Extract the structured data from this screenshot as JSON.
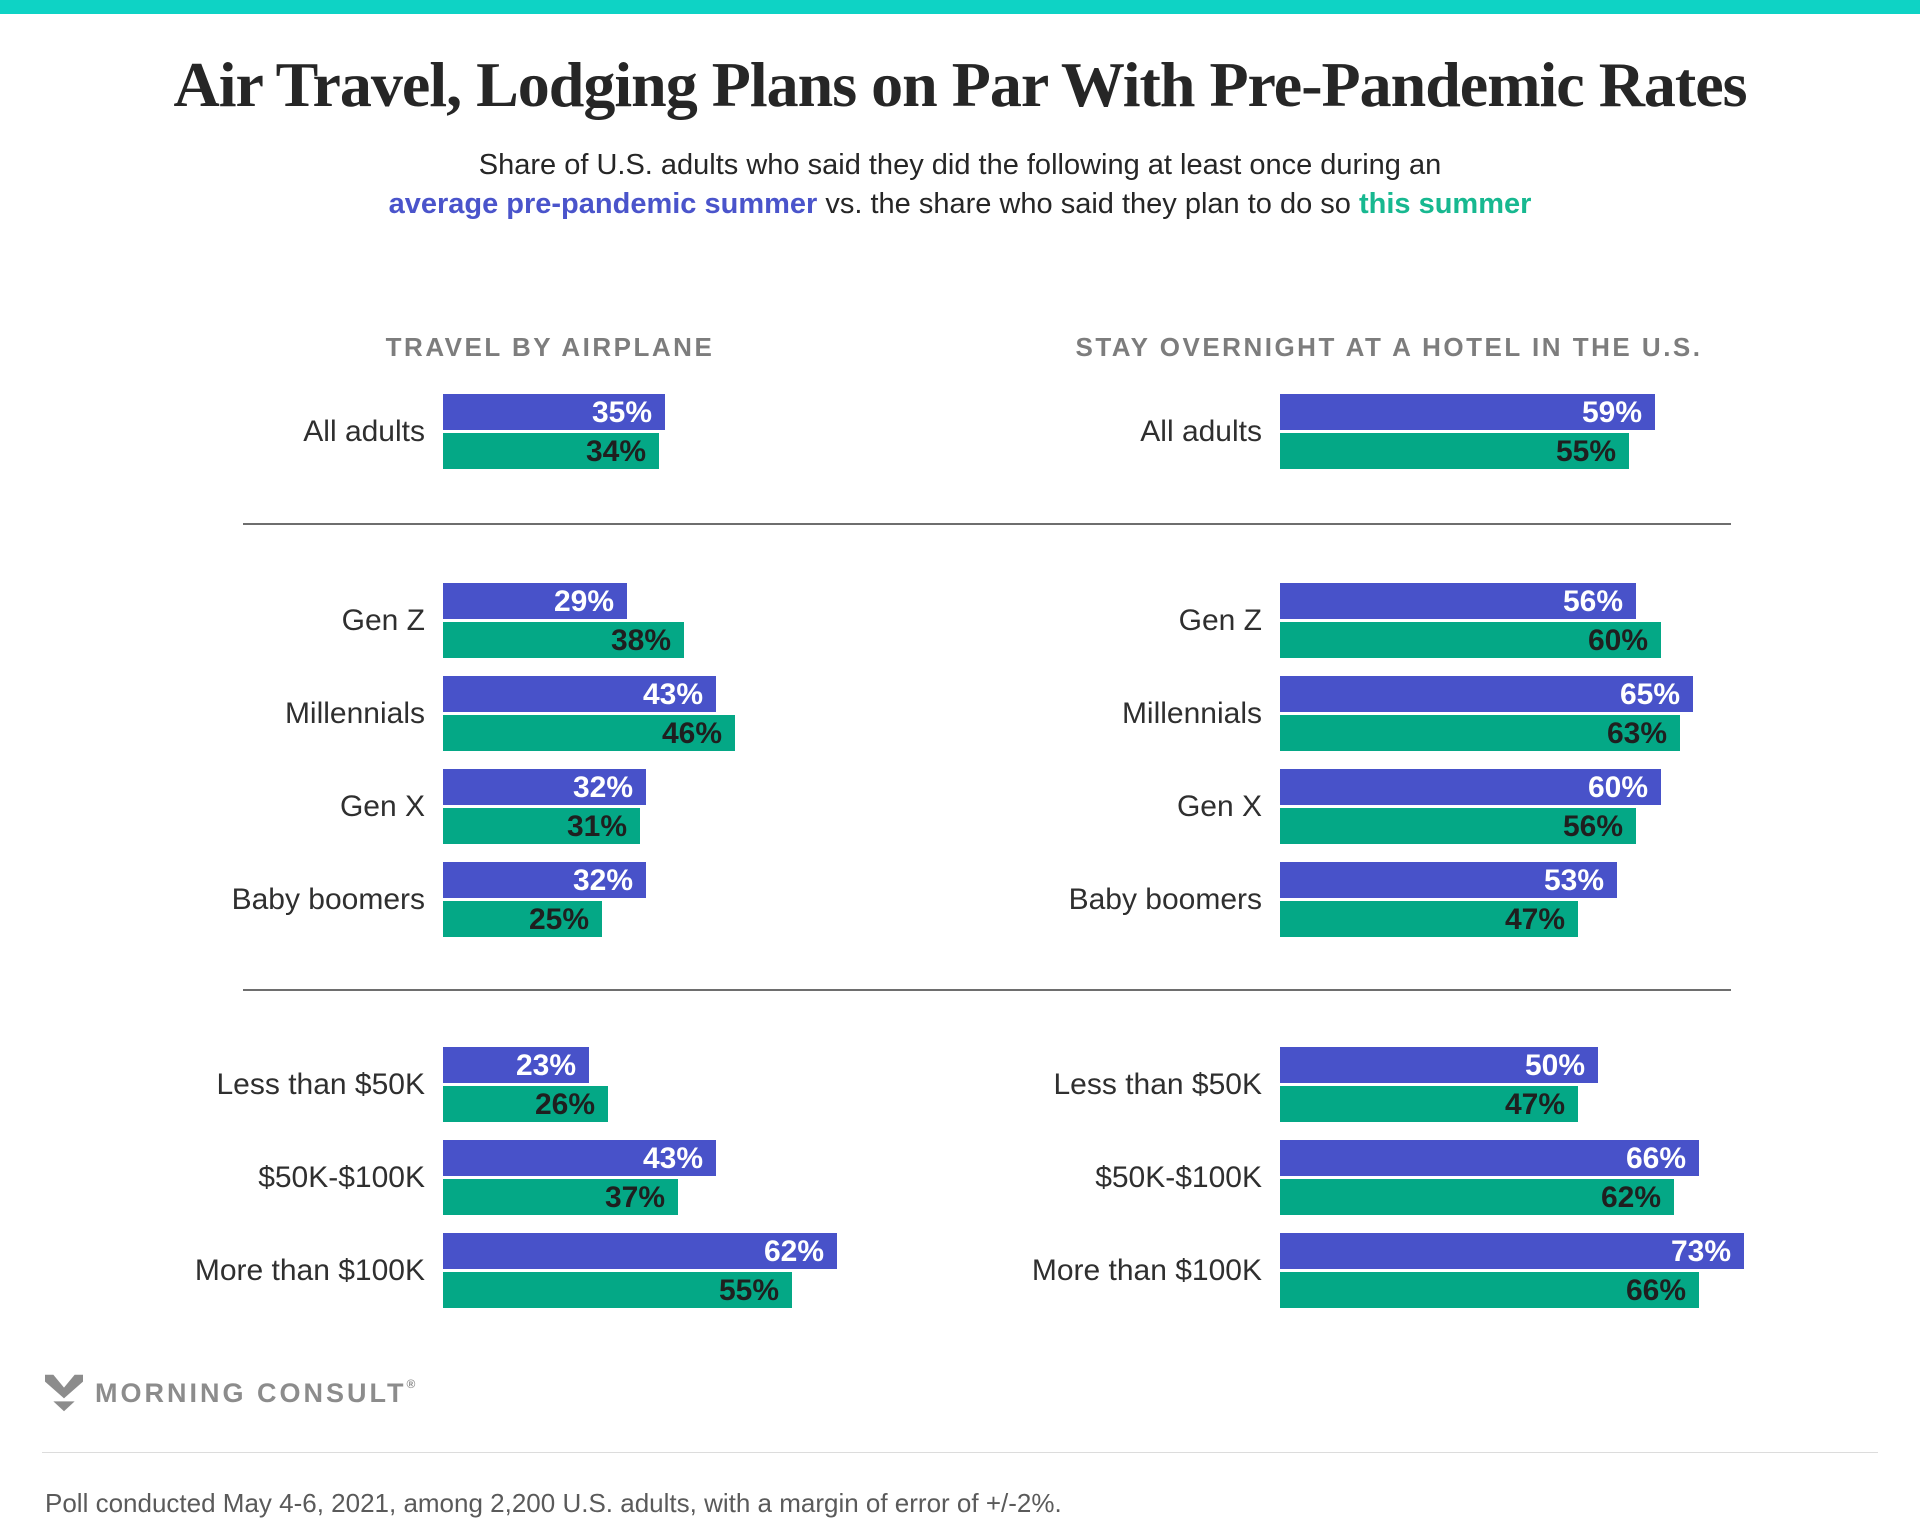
{
  "colors": {
    "top_bar": "#0ed3c5",
    "bar_pre_pandemic": "#4852c9",
    "bar_this_summer": "#04a886",
    "subtitle_blue": "#4a54cb",
    "subtitle_green": "#17b890"
  },
  "header": {
    "title": "Air Travel, Lodging Plans on Par With Pre-Pandemic Rates",
    "subtitle_line1": "Share of U.S. adults who said they did the following at least once during an",
    "subtitle_line2_blue": "average pre-pandemic summer",
    "subtitle_line2_mid": " vs. the share who said they plan to do so ",
    "subtitle_line2_green": "this summer"
  },
  "chart_data": {
    "type": "bar",
    "orientation": "horizontal",
    "unit": "%",
    "value_range": [
      0,
      100
    ],
    "grid": false,
    "legend": "embedded in subtitle: blue = average pre-pandemic summer, green = this summer",
    "series_names": [
      "average pre-pandemic summer",
      "this summer"
    ],
    "panels": [
      {
        "title": "TRAVEL BY AIRPLANE",
        "sections": [
          {
            "rows": [
              {
                "label": "All adults",
                "pre_pandemic": 35,
                "this_summer": 34
              }
            ]
          },
          {
            "rows": [
              {
                "label": "Gen Z",
                "pre_pandemic": 29,
                "this_summer": 38
              },
              {
                "label": "Millennials",
                "pre_pandemic": 43,
                "this_summer": 46
              },
              {
                "label": "Gen X",
                "pre_pandemic": 32,
                "this_summer": 31
              },
              {
                "label": "Baby boomers",
                "pre_pandemic": 32,
                "this_summer": 25
              }
            ]
          },
          {
            "rows": [
              {
                "label": "Less than $50K",
                "pre_pandemic": 23,
                "this_summer": 26
              },
              {
                "label": "$50K-$100K",
                "pre_pandemic": 43,
                "this_summer": 37
              },
              {
                "label": "More than $100K",
                "pre_pandemic": 62,
                "this_summer": 55
              }
            ]
          }
        ]
      },
      {
        "title": "STAY OVERNIGHT AT A HOTEL IN THE U.S.",
        "sections": [
          {
            "rows": [
              {
                "label": "All adults",
                "pre_pandemic": 59,
                "this_summer": 55
              }
            ]
          },
          {
            "rows": [
              {
                "label": "Gen Z",
                "pre_pandemic": 56,
                "this_summer": 60
              },
              {
                "label": "Millennials",
                "pre_pandemic": 65,
                "this_summer": 63
              },
              {
                "label": "Gen X",
                "pre_pandemic": 60,
                "this_summer": 56
              },
              {
                "label": "Baby boomers",
                "pre_pandemic": 53,
                "this_summer": 47
              }
            ]
          },
          {
            "rows": [
              {
                "label": "Less than $50K",
                "pre_pandemic": 50,
                "this_summer": 47
              },
              {
                "label": "$50K-$100K",
                "pre_pandemic": 66,
                "this_summer": 62
              },
              {
                "label": "More than $100K",
                "pre_pandemic": 73,
                "this_summer": 66
              }
            ]
          }
        ]
      }
    ]
  },
  "footer": {
    "logo_text": "MORNING CONSULT",
    "logo_registered": "®",
    "poll_note": "Poll conducted May 4-6, 2021, among 2,200 U.S. adults, with a margin of error of +/-2%."
  }
}
